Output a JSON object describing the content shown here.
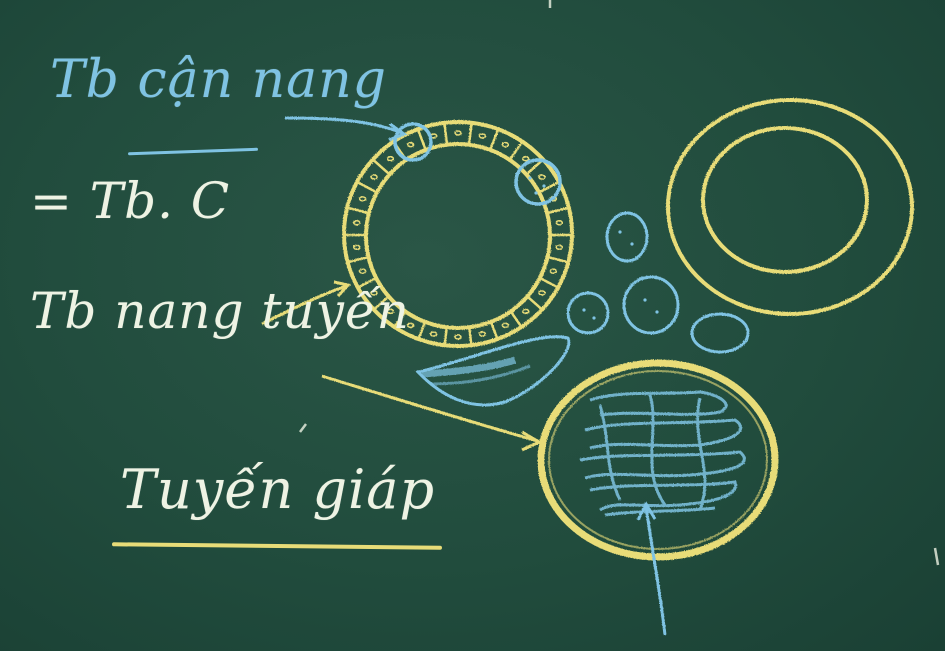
{
  "board": {
    "colors": {
      "background": "#214c3d",
      "chalk_white": "#eef3e4",
      "chalk_blue": "#7fc3e3",
      "chalk_yellow": "#e8dc78"
    }
  },
  "labels": {
    "c_cell": "Tb cận nang",
    "cell_eq": "= Tb. C",
    "follicular_cell": "Tb nang tuyến",
    "thyroid": "Tuyến giáp"
  }
}
